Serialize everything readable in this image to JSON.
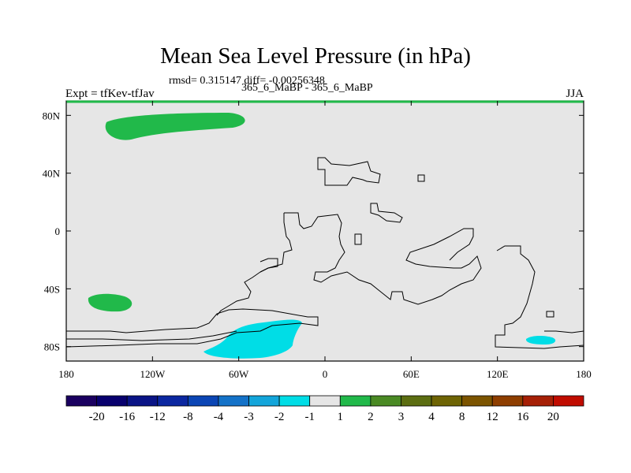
{
  "title": "Mean Sea Level Pressure (in hPa)",
  "stats": "rmsd= 0.315147 diff= -0.00256348",
  "experiment": "Expt = tfKev-tfJav",
  "subtitle": "365_6_MaBP - 365_6_MaBP",
  "season": "JJA",
  "map": {
    "lon_range": [
      -180,
      180
    ],
    "lat_range": [
      -90,
      90
    ],
    "x_ticks": [
      {
        "lon": -180,
        "label": "180"
      },
      {
        "lon": -120,
        "label": "120W"
      },
      {
        "lon": -60,
        "label": "60W"
      },
      {
        "lon": 0,
        "label": "0"
      },
      {
        "lon": 60,
        "label": "60E"
      },
      {
        "lon": 120,
        "label": "120E"
      },
      {
        "lon": 180,
        "label": "180"
      }
    ],
    "y_ticks": [
      {
        "lat": 80,
        "label": "80N"
      },
      {
        "lat": 40,
        "label": "40N"
      },
      {
        "lat": 0,
        "label": "0"
      },
      {
        "lat": -40,
        "label": "40S"
      },
      {
        "lat": -80,
        "label": "80S"
      }
    ],
    "background_color": "#e6e6e6",
    "positive_fill": "#21b94a",
    "negative_fill": "#00dde6",
    "positive_regions": [
      {
        "name": "arctic",
        "lon_range": [
          -155,
          -55
        ],
        "lat_range": [
          70,
          82
        ],
        "level": "1 to 2"
      },
      {
        "name": "southern-pacific",
        "lon_range": [
          -165,
          -133
        ],
        "lat_range": [
          -55,
          -44
        ],
        "level": "1 to 2"
      }
    ],
    "negative_regions": [
      {
        "name": "weddell",
        "lon_range": [
          -85,
          -15
        ],
        "lat_range": [
          -86,
          -62
        ],
        "level": "-2 to -1"
      },
      {
        "name": "ross",
        "lon_range": [
          140,
          162
        ],
        "lat_range": [
          -78,
          -73
        ],
        "level": "-2 to -1"
      }
    ]
  },
  "colorbar": {
    "colors": [
      "#1a0060",
      "#08006e",
      "#0a1486",
      "#0b27a0",
      "#0b45b4",
      "#1472c8",
      "#13a5da",
      "#00dde6",
      "#e6e6e6",
      "#21b94a",
      "#4a8a24",
      "#5c6e12",
      "#6e6404",
      "#7c5400",
      "#8e3e00",
      "#a62006",
      "#c00c00"
    ],
    "labels": [
      "-20",
      "-16",
      "-12",
      "-8",
      "-4",
      "-3",
      "-2",
      "-1",
      "1",
      "2",
      "3",
      "4",
      "8",
      "12",
      "16",
      "20"
    ]
  }
}
